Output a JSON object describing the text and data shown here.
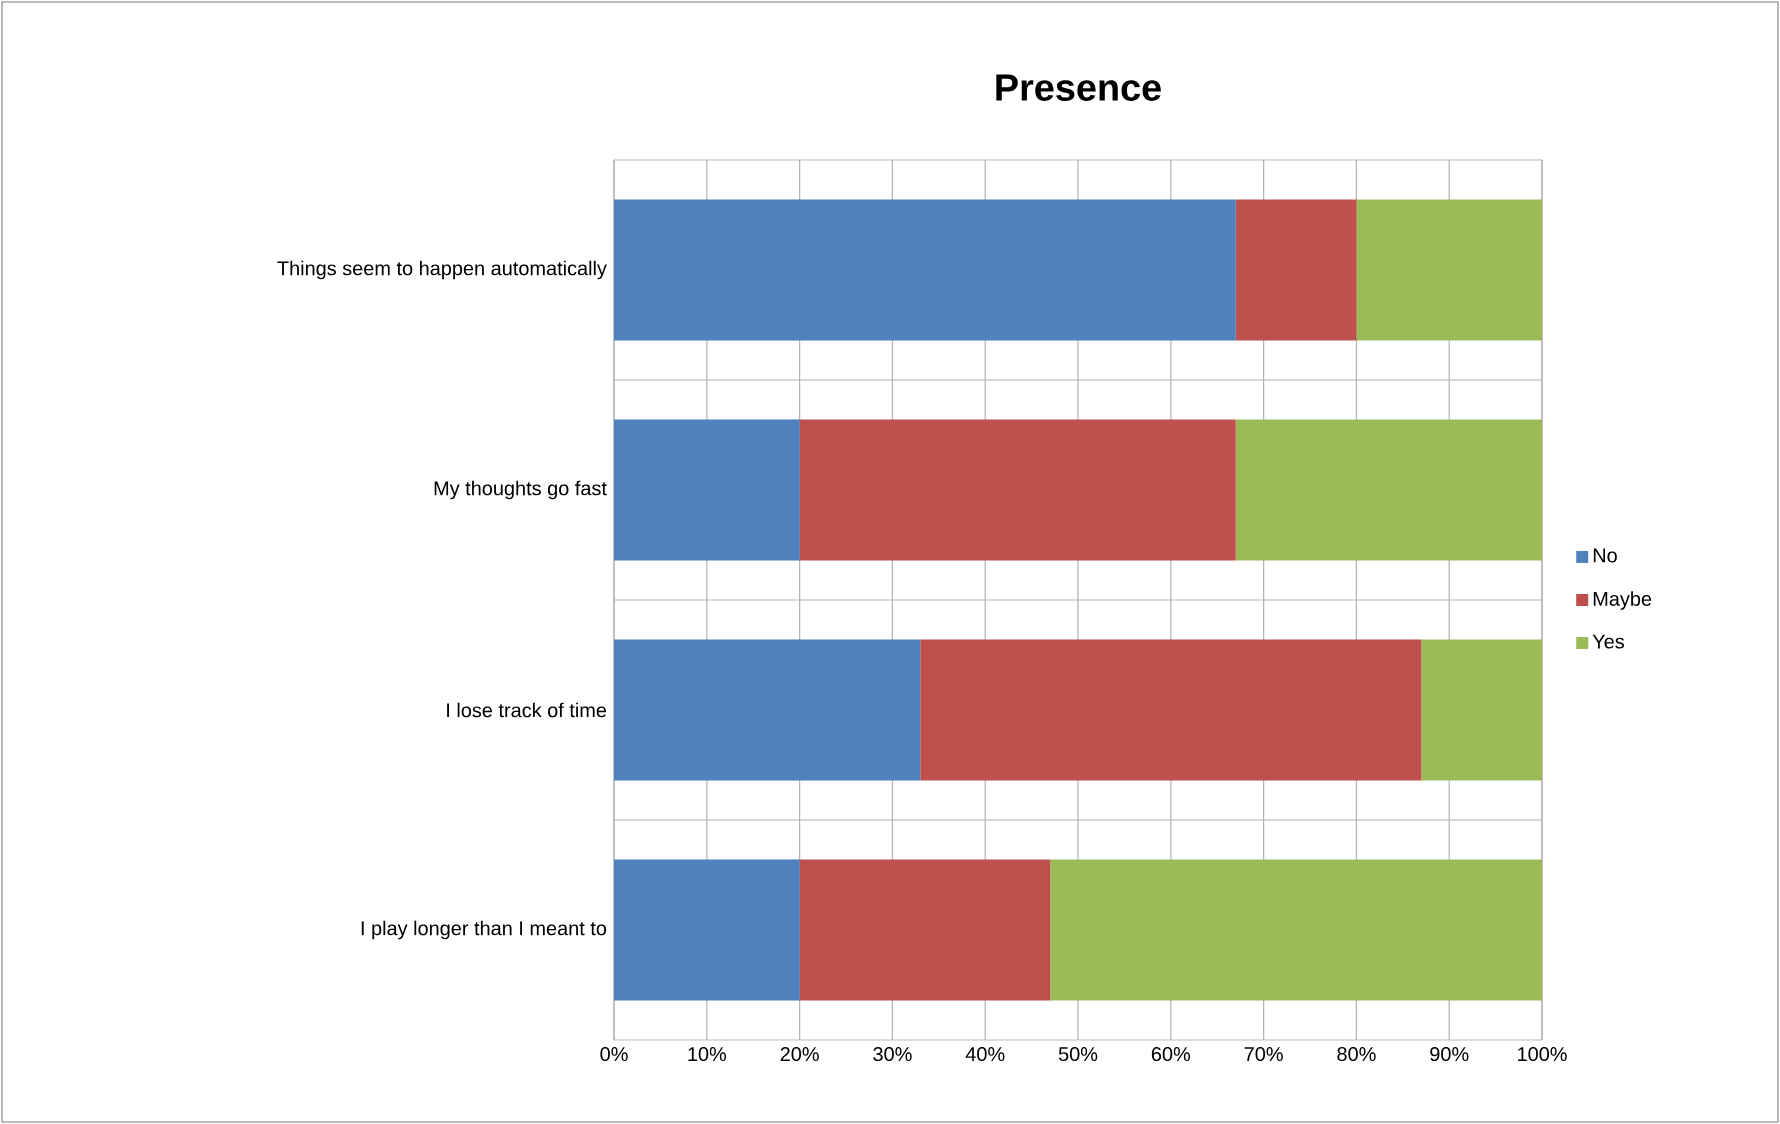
{
  "chart_data": {
    "type": "bar",
    "orientation": "horizontal",
    "stacked": true,
    "title": "Presence",
    "categories": [
      "Things seem to happen automatically",
      "My thoughts go fast",
      "I lose track of time",
      "I play longer than I meant to"
    ],
    "series": [
      {
        "name": "No",
        "color": "#4f81bd",
        "values": [
          67,
          20,
          33,
          20
        ]
      },
      {
        "name": "Maybe",
        "color": "#c0504d",
        "values": [
          13,
          47,
          54,
          27
        ]
      },
      {
        "name": "Yes",
        "color": "#9bbb59",
        "values": [
          20,
          33,
          13,
          53
        ]
      }
    ],
    "xlim": [
      0,
      100
    ],
    "xticks": [
      {
        "value": 0,
        "label": "0%"
      },
      {
        "value": 10,
        "label": "10%"
      },
      {
        "value": 20,
        "label": "20%"
      },
      {
        "value": 30,
        "label": "30%"
      },
      {
        "value": 40,
        "label": "40%"
      },
      {
        "value": 50,
        "label": "50%"
      },
      {
        "value": 60,
        "label": "60%"
      },
      {
        "value": 70,
        "label": "70%"
      },
      {
        "value": 80,
        "label": "80%"
      },
      {
        "value": 90,
        "label": "90%"
      },
      {
        "value": 100,
        "label": "100%"
      }
    ],
    "grid": true,
    "legend": "right"
  }
}
